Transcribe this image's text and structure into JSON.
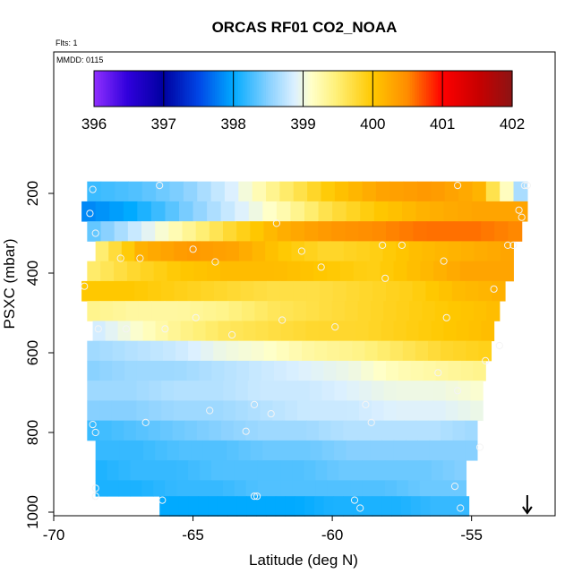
{
  "chart_data": {
    "type": "heatmap",
    "title": "ORCAS RF01 CO2_NOAA",
    "notes": [
      "Flts: 1",
      "MMDD: 0115"
    ],
    "xlabel": "Latitude (deg N)",
    "ylabel": "PSXC (mbar)",
    "xlim": [
      -70,
      -52
    ],
    "ylim": [
      1000,
      100
    ],
    "x_ticks": [
      -70,
      -65,
      -60,
      -55
    ],
    "y_ticks": [
      200,
      400,
      600,
      800,
      1000
    ],
    "colorbar": {
      "min": 396,
      "max": 402,
      "ticks": [
        396,
        397,
        398,
        399,
        400,
        401,
        402
      ]
    },
    "bands": [
      {
        "p": [
          170,
          220
        ],
        "xmin": -68.8,
        "xmax": -53.0,
        "values": [
          398.2,
          398.3,
          398.5,
          398.9,
          399.5,
          400.0,
          400.3,
          400.4,
          400.2,
          398.4
        ]
      },
      {
        "p": [
          220,
          270
        ],
        "xmin": -69.0,
        "xmax": -53.0,
        "values": [
          397.8,
          398.0,
          398.4,
          398.8,
          399.2,
          399.7,
          400.0,
          400.2,
          400.3,
          400.3
        ]
      },
      {
        "p": [
          270,
          320
        ],
        "xmin": -68.8,
        "xmax": -53.2,
        "values": [
          398.3,
          398.8,
          399.3,
          399.8,
          400.2,
          400.4,
          400.5,
          400.6,
          400.6,
          400.5
        ]
      },
      {
        "p": [
          320,
          370
        ],
        "xmin": -68.5,
        "xmax": -53.5,
        "values": [
          399.4,
          400.2,
          400.4,
          400.3,
          400.0,
          399.8,
          399.9,
          400.1,
          400.2,
          400.3
        ]
      },
      {
        "p": [
          370,
          420
        ],
        "xmin": -68.8,
        "xmax": -53.5,
        "values": [
          399.5,
          399.8,
          400.0,
          400.1,
          400.1,
          400.0,
          399.9,
          400.1,
          400.3,
          400.3
        ]
      },
      {
        "p": [
          420,
          470
        ],
        "xmin": -69.0,
        "xmax": -53.8,
        "values": [
          400.0,
          400.0,
          399.9,
          399.8,
          399.7,
          399.7,
          399.8,
          399.9,
          400.1,
          400.2
        ]
      },
      {
        "p": [
          470,
          520
        ],
        "xmin": -68.8,
        "xmax": -54.0,
        "values": [
          399.4,
          399.3,
          399.3,
          399.4,
          399.6,
          399.7,
          399.8,
          399.9,
          400.0,
          400.1
        ]
      },
      {
        "p": [
          520,
          570
        ],
        "xmin": -68.6,
        "xmax": -54.2,
        "values": [
          398.8,
          399.1,
          399.4,
          399.6,
          399.7,
          399.8,
          399.8,
          399.9,
          400.0,
          400.1
        ]
      },
      {
        "p": [
          570,
          620
        ],
        "xmin": -68.8,
        "xmax": -54.3,
        "values": [
          398.6,
          398.7,
          398.8,
          399.0,
          399.1,
          399.3,
          399.4,
          399.6,
          399.8,
          399.9
        ]
      },
      {
        "p": [
          620,
          670
        ],
        "xmin": -68.8,
        "xmax": -54.5,
        "values": [
          398.5,
          398.6,
          398.6,
          398.7,
          398.8,
          398.9,
          399.0,
          399.2,
          399.3,
          399.4
        ]
      },
      {
        "p": [
          670,
          720
        ],
        "xmin": -68.8,
        "xmax": -54.6,
        "values": [
          398.6,
          398.6,
          398.7,
          398.7,
          398.8,
          398.8,
          398.9,
          399.0,
          399.0,
          399.1
        ]
      },
      {
        "p": [
          720,
          770
        ],
        "xmin": -68.8,
        "xmax": -54.6,
        "values": [
          398.5,
          398.5,
          398.6,
          398.6,
          398.7,
          398.8,
          398.8,
          398.9,
          398.9,
          399.0
        ]
      },
      {
        "p": [
          770,
          820
        ],
        "xmin": -68.8,
        "xmax": -54.8,
        "values": [
          398.2,
          398.3,
          398.4,
          398.5,
          398.6,
          398.6,
          398.7,
          398.7,
          398.7,
          398.6
        ]
      },
      {
        "p": [
          820,
          870
        ],
        "xmin": -68.5,
        "xmax": -54.8,
        "values": [
          398.2,
          398.2,
          398.3,
          398.3,
          398.4,
          398.4,
          398.5,
          398.5,
          398.5,
          398.5
        ]
      },
      {
        "p": [
          870,
          920
        ],
        "xmin": -68.5,
        "xmax": -55.2,
        "values": [
          398.1,
          398.2,
          398.2,
          398.3,
          398.3,
          398.3,
          398.4,
          398.4,
          398.4,
          398.5
        ]
      },
      {
        "p": [
          920,
          960
        ],
        "xmin": -68.5,
        "xmax": -55.2,
        "values": [
          398.1,
          398.1,
          398.2,
          398.2,
          398.3,
          398.3,
          398.3,
          398.3,
          398.4,
          398.4
        ]
      },
      {
        "p": [
          960,
          1010
        ],
        "xmin": -66.2,
        "xmax": -55.1,
        "values": [
          398.0,
          398.0,
          398.0,
          398.0,
          398.0,
          398.1,
          398.1,
          398.1,
          398.2,
          398.2
        ]
      }
    ],
    "points": [
      [
        -68.6,
        190
      ],
      [
        -66.2,
        180
      ],
      [
        -55.5,
        180
      ],
      [
        -53.0,
        180
      ],
      [
        -53.1,
        180
      ],
      [
        -68.7,
        250
      ],
      [
        -62.0,
        275
      ],
      [
        -53.3,
        242
      ],
      [
        -53.2,
        260
      ],
      [
        -68.5,
        300
      ],
      [
        -67.6,
        363
      ],
      [
        -66.9,
        363
      ],
      [
        -65.0,
        340
      ],
      [
        -64.2,
        372
      ],
      [
        -61.1,
        345
      ],
      [
        -60.4,
        385
      ],
      [
        -58.2,
        330
      ],
      [
        -57.5,
        330
      ],
      [
        -56.0,
        370
      ],
      [
        -53.7,
        330
      ],
      [
        -53.5,
        330
      ],
      [
        -58.1,
        413
      ],
      [
        -68.9,
        433
      ],
      [
        -54.2,
        440
      ],
      [
        -68.4,
        540
      ],
      [
        -67.4,
        540
      ],
      [
        -66.0,
        540
      ],
      [
        -64.9,
        512
      ],
      [
        -63.6,
        555
      ],
      [
        -61.8,
        518
      ],
      [
        -59.9,
        535
      ],
      [
        -55.9,
        512
      ],
      [
        -54.0,
        582
      ],
      [
        -54.5,
        620
      ],
      [
        -56.2,
        650
      ],
      [
        -55.5,
        695
      ],
      [
        -62.8,
        730
      ],
      [
        -58.8,
        730
      ],
      [
        -64.4,
        745
      ],
      [
        -62.2,
        753
      ],
      [
        -68.6,
        780
      ],
      [
        -68.5,
        800
      ],
      [
        -66.7,
        775
      ],
      [
        -63.1,
        797
      ],
      [
        -58.6,
        775
      ],
      [
        -54.7,
        837
      ],
      [
        -68.5,
        940
      ],
      [
        -68.5,
        960
      ],
      [
        -66.1,
        970
      ],
      [
        -62.7,
        960
      ],
      [
        -62.8,
        960
      ],
      [
        -59.2,
        970
      ],
      [
        -59.0,
        990
      ],
      [
        -55.6,
        935
      ],
      [
        -55.4,
        990
      ]
    ],
    "arrow_marker": {
      "x": -53.0,
      "p": 1000,
      "direction": "down"
    }
  }
}
